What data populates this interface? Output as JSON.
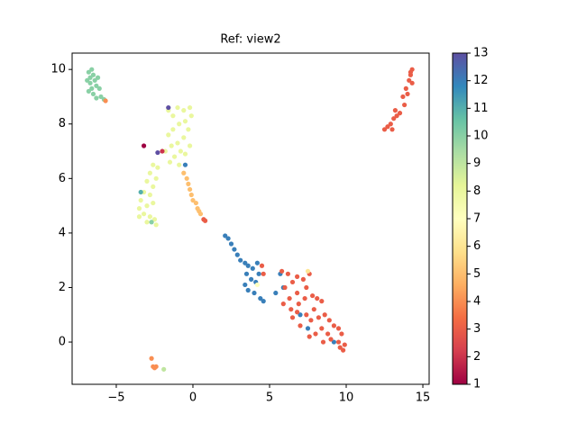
{
  "chart_data": {
    "type": "scatter",
    "title": "Ref: view2",
    "xlim": [
      -7.88,
      15.41
    ],
    "ylim": [
      -1.55,
      10.6
    ],
    "xticks": [
      {
        "value": -5,
        "label": "−5"
      },
      0,
      5,
      10,
      15
    ],
    "yticks": [
      0,
      2,
      4,
      6,
      8,
      10
    ],
    "clim": [
      1,
      13
    ],
    "cticks": [
      1,
      2,
      3,
      4,
      5,
      6,
      7,
      8,
      9,
      10,
      11,
      12,
      13
    ],
    "colormap": [
      "#9e0142",
      "#d53e4f",
      "#f46d43",
      "#fdae61",
      "#fee08b",
      "#ffffbf",
      "#e6f598",
      "#abdda4",
      "#66c2a5",
      "#3288bd",
      "#5e4fa2"
    ],
    "series": [
      {
        "x": [
          -6.8,
          -6.6,
          -6.5,
          -6.9,
          -6.7,
          -6.4,
          -6.2,
          -6.3,
          -6.6,
          -6.8,
          -6.5,
          -6.1,
          -6.0,
          -6.3,
          -5.8,
          -6.7,
          -5.7
        ],
        "values": [
          9.9,
          10,
          9.8,
          9.6,
          9.5,
          9.6,
          9.7,
          9.4,
          9.3,
          9.2,
          9.1,
          9.3,
          9.0,
          8.95,
          8.9,
          9.7,
          8.85
        ],
        "c": [
          10,
          10,
          10,
          10,
          10,
          10,
          10,
          10,
          10,
          10,
          10,
          10,
          10,
          10,
          10,
          10,
          4
        ]
      },
      {
        "x": [
          14.3,
          14.2,
          14.1,
          14.3,
          13.9,
          14.0,
          13.7,
          13.8,
          13.5,
          13.2,
          13.1,
          12.9,
          12.7,
          13.0,
          12.5,
          13.3,
          14.2
        ],
        "values": [
          10,
          9.8,
          9.6,
          9.5,
          9.3,
          9.1,
          9.0,
          8.7,
          8.4,
          8.5,
          8.2,
          8.0,
          7.9,
          7.8,
          7.8,
          8.3,
          9.9
        ],
        "c": [
          3,
          3,
          3,
          3,
          3,
          3,
          3,
          3,
          3,
          3,
          3,
          3,
          3,
          3,
          3,
          3,
          3
        ]
      },
      {
        "x": [
          -1.6,
          -1.3,
          -1.0,
          -0.6,
          -0.2,
          -0.1,
          -0.5,
          -0.9,
          -1.3,
          -1.6,
          -0.3,
          -0.6,
          -1.0,
          -1.4,
          -0.8,
          -1.2,
          -0.5,
          -1.5,
          -0.9,
          -1.8,
          -0.2
        ],
        "values": [
          8.5,
          8.3,
          8.6,
          8.5,
          8.6,
          8.3,
          8.1,
          8.0,
          7.8,
          7.6,
          7.8,
          7.5,
          7.3,
          7.2,
          7.0,
          6.8,
          6.9,
          6.6,
          6.5,
          7.0,
          7.2
        ],
        "c": [
          8,
          8,
          8,
          8,
          8,
          8,
          8,
          8,
          8,
          8,
          8,
          8,
          8,
          8,
          8,
          8,
          8,
          8,
          8,
          8,
          8
        ]
      },
      {
        "x": [
          -2.6,
          -2.3,
          -2.8,
          -2.4,
          -3.0,
          -2.6,
          -3.2,
          -2.8,
          -3.4,
          -3.0,
          -2.6,
          -3.5,
          -3.2,
          -2.8,
          -3.5,
          -2.5,
          -2.4,
          -3.0
        ],
        "values": [
          6.5,
          6.4,
          6.2,
          6.0,
          5.9,
          5.7,
          5.5,
          5.4,
          5.2,
          5.0,
          5.1,
          4.9,
          4.7,
          4.6,
          4.6,
          4.5,
          4.3,
          4.4
        ],
        "c": [
          8,
          8,
          8,
          8,
          8,
          8,
          8,
          8,
          8,
          8,
          8,
          8,
          8,
          8,
          8,
          8,
          8,
          8
        ]
      },
      {
        "x": [
          -3.2,
          -2.0,
          -2.3,
          -0.5,
          -2.7,
          -3.4,
          -1.6
        ],
        "values": [
          7.2,
          7.0,
          6.95,
          6.5,
          4.4,
          5.5,
          8.6
        ],
        "c": [
          1,
          2,
          13,
          12,
          10,
          11,
          13
        ]
      },
      {
        "x": [
          -0.6,
          -0.4,
          -0.3,
          -0.2,
          -0.1,
          0.0,
          0.2,
          0.3,
          0.4,
          0.5,
          0.7,
          0.8
        ],
        "values": [
          6.2,
          6.0,
          5.8,
          5.6,
          5.4,
          5.2,
          5.1,
          4.9,
          4.8,
          4.7,
          4.5,
          4.45
        ],
        "c": [
          5,
          5,
          5,
          5,
          5,
          5,
          5,
          5,
          5,
          5,
          3,
          3
        ]
      },
      {
        "x": [
          2.1,
          2.3,
          2.5,
          2.7,
          2.9,
          3.1,
          3.4,
          3.6,
          3.9,
          4.2,
          3.5,
          3.8,
          4.1,
          3.4,
          3.6,
          4.0,
          4.4,
          4.3,
          4.6,
          5.4,
          5.7,
          7.0,
          7.5,
          9.2,
          5.9
        ],
        "values": [
          3.9,
          3.8,
          3.6,
          3.4,
          3.2,
          3.0,
          2.9,
          2.8,
          2.7,
          2.9,
          2.5,
          2.3,
          2.2,
          2.1,
          1.9,
          1.8,
          1.6,
          2.5,
          1.5,
          1.8,
          2.5,
          1.0,
          0.5,
          0.0,
          2.0
        ],
        "c": [
          12,
          12,
          12,
          12,
          12,
          12,
          12,
          12,
          12,
          12,
          12,
          12,
          12,
          12,
          12,
          12,
          12,
          12,
          12,
          12,
          12,
          12,
          12,
          12,
          12
        ]
      },
      {
        "x": [
          4.5,
          4.6,
          5.8,
          6.2,
          6.5,
          6.0,
          6.8,
          7.2,
          7.6,
          7.4,
          6.8,
          6.3,
          6.9,
          7.3,
          7.8,
          8.1,
          8.4,
          7.9,
          7.4,
          6.8,
          7.0,
          7.7,
          8.2,
          8.6,
          8.9,
          8.4,
          8.0,
          7.6,
          8.8,
          9.2,
          9.5,
          9.7,
          9.5,
          9.9,
          9.8,
          9.6,
          9.0,
          8.5,
          6.5,
          5.9,
          6.4
        ],
        "values": [
          2.8,
          2.5,
          2.6,
          2.5,
          2.2,
          2.0,
          2.4,
          2.3,
          2.5,
          2.0,
          1.8,
          1.6,
          1.4,
          1.6,
          1.7,
          1.6,
          1.5,
          1.2,
          1.0,
          1.1,
          0.6,
          0.8,
          0.9,
          1.0,
          0.8,
          0.5,
          0.3,
          0.2,
          0.3,
          0.6,
          0.5,
          0.3,
          0.0,
          -0.1,
          -0.3,
          -0.2,
          0.1,
          0.0,
          0.9,
          1.4,
          1.2
        ],
        "c": [
          3,
          3,
          3,
          3,
          3,
          3,
          3,
          3,
          3,
          3,
          3,
          3,
          3,
          3,
          3,
          3,
          3,
          3,
          3,
          3,
          3,
          3,
          3,
          3,
          3,
          3,
          3,
          3,
          3,
          3,
          3,
          3,
          3,
          3,
          3,
          3,
          3,
          3,
          3,
          3,
          3
        ]
      },
      {
        "x": [
          4.2,
          7.5
        ],
        "values": [
          2.1,
          2.6
        ],
        "c": [
          7,
          6
        ]
      },
      {
        "x": [
          -2.7,
          -2.6,
          -2.5,
          -2.4,
          -1.9
        ],
        "values": [
          -0.6,
          -0.9,
          -0.95,
          -0.9,
          -1.0
        ],
        "c": [
          4,
          4,
          4,
          4,
          9
        ]
      }
    ]
  }
}
